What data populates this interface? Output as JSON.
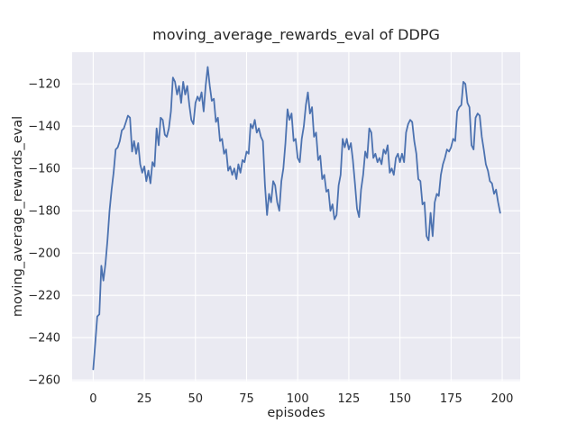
{
  "figure": {
    "background": "#ffffff",
    "text_color": "#262626"
  },
  "chart_data": {
    "type": "line",
    "title": "moving_average_rewards_eval of DDPG",
    "xlabel": "episodes",
    "ylabel": "moving_average_rewards_eval",
    "x_start": 0,
    "x_step": 1,
    "values": [
      -255,
      -243,
      -230,
      -229,
      -206,
      -213,
      -205,
      -194,
      -180,
      -170,
      -162,
      -151,
      -150,
      -147,
      -142,
      -141,
      -138,
      -135,
      -136,
      -152,
      -147,
      -153,
      -148,
      -158,
      -162,
      -159,
      -166,
      -161,
      -167,
      -157,
      -159,
      -141,
      -149,
      -136,
      -137,
      -144,
      -145,
      -141,
      -133,
      -117,
      -119,
      -125,
      -121,
      -129,
      -119,
      -125,
      -121,
      -130,
      -137,
      -139,
      -129,
      -126,
      -128,
      -124,
      -133,
      -121,
      -112,
      -121,
      -128,
      -127,
      -138,
      -136,
      -147,
      -146,
      -153,
      -151,
      -161,
      -159,
      -163,
      -160,
      -165,
      -158,
      -162,
      -156,
      -157,
      -152,
      -153,
      -139,
      -141,
      -137,
      -143,
      -141,
      -145,
      -147,
      -168,
      -182,
      -172,
      -176,
      -166,
      -168,
      -176,
      -180,
      -166,
      -160,
      -148,
      -132,
      -137,
      -134,
      -147,
      -146,
      -155,
      -157,
      -146,
      -140,
      -130,
      -124,
      -134,
      -131,
      -145,
      -143,
      -156,
      -154,
      -165,
      -163,
      -171,
      -170,
      -180,
      -177,
      -184,
      -182,
      -168,
      -163,
      -146,
      -150,
      -146,
      -151,
      -148,
      -156,
      -167,
      -179,
      -183,
      -170,
      -163,
      -152,
      -155,
      -141,
      -143,
      -155,
      -153,
      -157,
      -155,
      -158,
      -151,
      -153,
      -149,
      -162,
      -160,
      -163,
      -155,
      -153,
      -157,
      -153,
      -157,
      -143,
      -139,
      -137,
      -138,
      -147,
      -153,
      -165,
      -166,
      -177,
      -176,
      -192,
      -194,
      -181,
      -192,
      -176,
      -172,
      -173,
      -163,
      -158,
      -155,
      -151,
      -152,
      -150,
      -146,
      -147,
      -133,
      -131,
      -130,
      -119,
      -120,
      -129,
      -131,
      -149,
      -151,
      -136,
      -134,
      -135,
      -145,
      -151,
      -158,
      -161,
      -166,
      -167,
      -172,
      -170,
      -176,
      -181
    ],
    "xticks": [
      0,
      25,
      50,
      75,
      100,
      125,
      150,
      175,
      200
    ],
    "yticks": [
      -120,
      -140,
      -160,
      -180,
      -200,
      -220,
      -240,
      -260
    ],
    "xlim": [
      -10.3,
      208.8
    ],
    "ylim": [
      -260.5,
      -105.0
    ],
    "grid": true,
    "legend_position": "none",
    "style": {
      "plot_bg": "#eaeaf2",
      "grid_color": "#ffffff",
      "line_color": "#4c72b0",
      "line_width": 1.8
    }
  }
}
